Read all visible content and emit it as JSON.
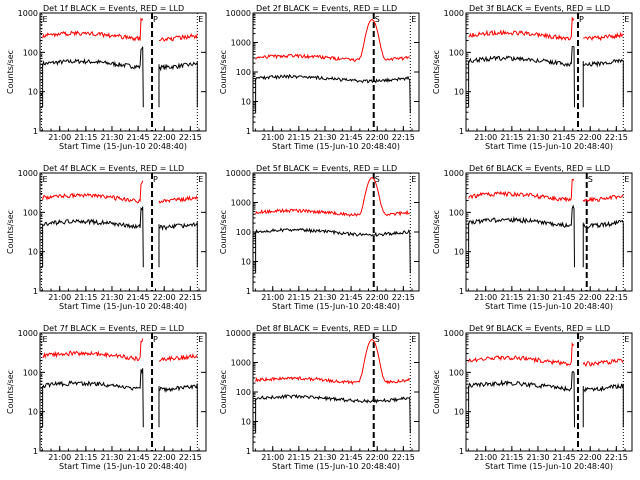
{
  "chart_data": [
    {
      "type": "line",
      "title": "Det 1f BLACK = Events, RED = LLD",
      "ylabel": "Counts/sec",
      "xlabel": "Start Time (15-Jun-10 20:48:40)",
      "yscale": "log",
      "ylim": [
        1,
        1000
      ],
      "xlim": [
        "20:48:40",
        "22:24"
      ],
      "x_ticks": [
        "21:00",
        "21:15",
        "21:30",
        "21:45",
        "22:00",
        "22:15"
      ],
      "y_ticks": [
        "1",
        "10",
        "100",
        "1000"
      ],
      "markers": [
        "E",
        "P",
        "E"
      ],
      "series": [
        {
          "name": "BLACK = Events",
          "color": "#000000",
          "baseline": 50,
          "gap_start": "21:48",
          "gap_end": "21:57",
          "end": "22:19"
        },
        {
          "name": "RED = LLD",
          "color": "#ff0000",
          "baseline": 260,
          "gap_start": "21:48",
          "gap_end": "21:57",
          "end": "22:19",
          "peak": null
        }
      ]
    },
    {
      "type": "line",
      "title": "Det 2f BLACK = Events, RED = LLD",
      "ylabel": "Counts/sec",
      "xlabel": "Start Time (15-Jun-10 20:48:40)",
      "yscale": "log",
      "ylim": [
        1,
        10000
      ],
      "xlim": [
        "20:48:40",
        "22:24"
      ],
      "x_ticks": [
        "21:00",
        "21:15",
        "21:30",
        "21:45",
        "22:00",
        "22:15"
      ],
      "y_ticks": [
        "1",
        "10",
        "100",
        "1000",
        "10000"
      ],
      "markers": [
        "S",
        "E"
      ],
      "series": [
        {
          "name": "BLACK = Events",
          "color": "#000000",
          "baseline": 60,
          "gap_start": null,
          "gap_end": null,
          "end": "22:19"
        },
        {
          "name": "RED = LLD",
          "color": "#ff0000",
          "baseline": 300,
          "gap_start": null,
          "gap_end": null,
          "end": "22:19",
          "peak": 6000
        }
      ]
    },
    {
      "type": "line",
      "title": "Det 3f BLACK = Events, RED = LLD",
      "ylabel": "Counts/sec",
      "xlabel": "Start Time (15-Jun-10 20:48:40)",
      "yscale": "log",
      "ylim": [
        1,
        1000
      ],
      "xlim": [
        "20:48:40",
        "22:24"
      ],
      "x_ticks": [
        "21:00",
        "21:15",
        "21:30",
        "21:45",
        "22:00",
        "22:15"
      ],
      "y_ticks": [
        "1",
        "10",
        "100",
        "1000"
      ],
      "markers": [
        "P",
        "E"
      ],
      "series": [
        {
          "name": "BLACK = Events",
          "color": "#000000",
          "baseline": 60,
          "gap_start": "21:51",
          "gap_end": "21:56",
          "end": "22:19"
        },
        {
          "name": "RED = LLD",
          "color": "#ff0000",
          "baseline": 270,
          "gap_start": "21:51",
          "gap_end": "21:56",
          "end": "22:19",
          "peak": null
        }
      ]
    },
    {
      "type": "line",
      "title": "Det 4f BLACK = Events, RED = LLD",
      "ylabel": "Counts/sec",
      "xlabel": "Start Time (15-Jun-10 20:48:40)",
      "yscale": "log",
      "ylim": [
        1,
        1000
      ],
      "xlim": [
        "20:48:40",
        "22:24"
      ],
      "x_ticks": [
        "21:00",
        "21:15",
        "21:30",
        "21:45",
        "22:00",
        "22:15"
      ],
      "y_ticks": [
        "1",
        "10",
        "100",
        "1000"
      ],
      "markers": [
        "E",
        "P",
        "E"
      ],
      "series": [
        {
          "name": "BLACK = Events",
          "color": "#000000",
          "baseline": 50,
          "gap_start": "21:48",
          "gap_end": "21:57",
          "end": "22:19"
        },
        {
          "name": "RED = LLD",
          "color": "#ff0000",
          "baseline": 230,
          "gap_start": "21:48",
          "gap_end": "21:57",
          "end": "22:19",
          "peak": null
        }
      ]
    },
    {
      "type": "line",
      "title": "Det 5f BLACK = Events, RED = LLD",
      "ylabel": "Counts/sec",
      "xlabel": "Start Time (15-Jun-10 20:48:40)",
      "yscale": "log",
      "ylim": [
        1,
        10000
      ],
      "xlim": [
        "20:48:40",
        "22:24"
      ],
      "x_ticks": [
        "21:00",
        "21:15",
        "21:30",
        "21:45",
        "22:00",
        "22:15"
      ],
      "y_ticks": [
        "1",
        "10",
        "100",
        "1000",
        "10000"
      ],
      "markers": [
        "S",
        "E"
      ],
      "series": [
        {
          "name": "BLACK = Events",
          "color": "#000000",
          "baseline": 100,
          "gap_start": null,
          "gap_end": null,
          "end": "22:19"
        },
        {
          "name": "RED = LLD",
          "color": "#ff0000",
          "baseline": 450,
          "gap_start": null,
          "gap_end": null,
          "end": "22:19",
          "peak": 7000
        }
      ]
    },
    {
      "type": "line",
      "title": "Det 6f BLACK = Events, RED = LLD",
      "ylabel": "Counts/sec",
      "xlabel": "Start Time (15-Jun-10 20:48:40)",
      "yscale": "log",
      "ylim": [
        1,
        1000
      ],
      "xlim": [
        "20:48:40",
        "22:24"
      ],
      "x_ticks": [
        "21:00",
        "21:15",
        "21:30",
        "21:45",
        "22:00",
        "22:15"
      ],
      "y_ticks": [
        "1",
        "10",
        "100",
        "1000"
      ],
      "markers": [
        "S",
        "E"
      ],
      "series": [
        {
          "name": "BLACK = Events",
          "color": "#000000",
          "baseline": 55,
          "gap_start": "21:51",
          "gap_end": "21:56",
          "end": "22:19"
        },
        {
          "name": "RED = LLD",
          "color": "#ff0000",
          "baseline": 250,
          "gap_start": "21:51",
          "gap_end": "21:56",
          "end": "22:19",
          "peak": null
        }
      ]
    },
    {
      "type": "line",
      "title": "Det 7f BLACK = Events, RED = LLD",
      "ylabel": "Counts/sec",
      "xlabel": "Start Time (15-Jun-10 20:48:40)",
      "yscale": "log",
      "ylim": [
        1,
        1000
      ],
      "xlim": [
        "20:48:40",
        "22:24"
      ],
      "x_ticks": [
        "21:00",
        "21:15",
        "21:30",
        "21:45",
        "22:00",
        "22:15"
      ],
      "y_ticks": [
        "1",
        "10",
        "100",
        "1000"
      ],
      "markers": [
        "E",
        "P",
        "E"
      ],
      "series": [
        {
          "name": "BLACK = Events",
          "color": "#000000",
          "baseline": 45,
          "gap_start": "21:48",
          "gap_end": "21:57",
          "end": "22:19"
        },
        {
          "name": "RED = LLD",
          "color": "#ff0000",
          "baseline": 260,
          "gap_start": "21:48",
          "gap_end": "21:57",
          "end": "22:19",
          "peak": null
        }
      ]
    },
    {
      "type": "line",
      "title": "Det 8f BLACK = Events, RED = LLD",
      "ylabel": "Counts/sec",
      "xlabel": "Start Time (15-Jun-10 20:48:40)",
      "yscale": "log",
      "ylim": [
        1,
        10000
      ],
      "xlim": [
        "20:48:40",
        "22:24"
      ],
      "x_ticks": [
        "21:00",
        "21:15",
        "21:30",
        "21:45",
        "22:00",
        "22:15"
      ],
      "y_ticks": [
        "1",
        "10",
        "100",
        "1000",
        "10000"
      ],
      "markers": [
        "S",
        "E"
      ],
      "series": [
        {
          "name": "BLACK = Events",
          "color": "#000000",
          "baseline": 60,
          "gap_start": null,
          "gap_end": null,
          "end": "22:19"
        },
        {
          "name": "RED = LLD",
          "color": "#ff0000",
          "baseline": 250,
          "gap_start": null,
          "gap_end": null,
          "end": "22:19",
          "peak": 6000
        }
      ]
    },
    {
      "type": "line",
      "title": "Det 9f BLACK = Events, RED = LLD",
      "ylabel": "Counts/sec",
      "xlabel": "Start Time (15-Jun-10 20:48:40)",
      "yscale": "log",
      "ylim": [
        1,
        1000
      ],
      "xlim": [
        "20:48:40",
        "22:24"
      ],
      "x_ticks": [
        "21:00",
        "21:15",
        "21:30",
        "21:45",
        "22:00",
        "22:15"
      ],
      "y_ticks": [
        "1",
        "10",
        "100",
        "1000"
      ],
      "markers": [
        "P",
        "E"
      ],
      "series": [
        {
          "name": "BLACK = Events",
          "color": "#000000",
          "baseline": 45,
          "gap_start": "21:51",
          "gap_end": "21:56",
          "end": "22:19"
        },
        {
          "name": "RED = LLD",
          "color": "#ff0000",
          "baseline": 200,
          "gap_start": "21:51",
          "gap_end": "21:56",
          "end": "22:19",
          "peak": null
        }
      ]
    }
  ]
}
